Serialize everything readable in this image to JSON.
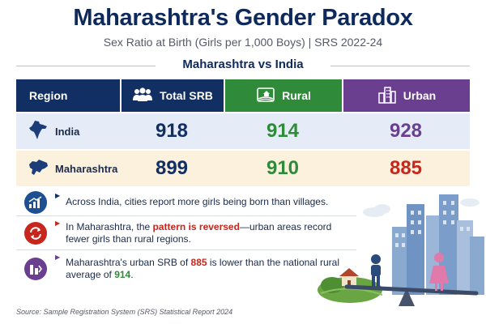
{
  "header": {
    "title": "Maharashtra's Gender Paradox",
    "subtitle": "Sex Ratio at Birth (Girls per 1,000 Boys)  |  SRS 2022-24",
    "section_title": "Maharashtra vs India"
  },
  "colors": {
    "navy": "#122f63",
    "green": "#2f8a39",
    "purple": "#6a3f8f",
    "red": "#c7261c",
    "india_row_bg": "#e6ecf7",
    "maha_row_bg": "#fbf1dd"
  },
  "chart_data": {
    "type": "table",
    "title": "Maharashtra vs India",
    "columns": [
      "Region",
      "Total SRB",
      "Rural",
      "Urban"
    ],
    "rows": [
      {
        "region": "India",
        "total": 918,
        "rural": 914,
        "urban": 928
      },
      {
        "region": "Maharashtra",
        "total": 899,
        "rural": 910,
        "urban": 885
      }
    ]
  },
  "table": {
    "headers": {
      "region": "Region",
      "total": "Total SRB",
      "rural": "Rural",
      "urban": "Urban"
    },
    "icons": {
      "total": "people-group-icon",
      "rural": "farmland-icon",
      "urban": "city-buildings-icon",
      "india": "india-map-icon",
      "maharashtra": "maharashtra-map-icon"
    }
  },
  "findings": [
    {
      "icon": "rising-chart-icon",
      "text": "Across India, cities report more girls being born than villages."
    },
    {
      "icon": "reverse-arrows-icon",
      "text_before": "In Maharashtra, the ",
      "highlight": "pattern is reversed",
      "text_after": "—urban areas record fewer girls than rural regions."
    },
    {
      "icon": "comparison-chart-icon",
      "text_before": "Maharashtra's urban SRB of ",
      "highlight_red": "885",
      "text_mid": " is lower than the national rural average of ",
      "highlight_green": "914",
      "text_after": "."
    }
  ],
  "illustration": {
    "icon": "city-village-seesaw-illustration"
  },
  "footer": {
    "source": "Source: Sample Registration System (SRS) Statistical Report 2024"
  }
}
